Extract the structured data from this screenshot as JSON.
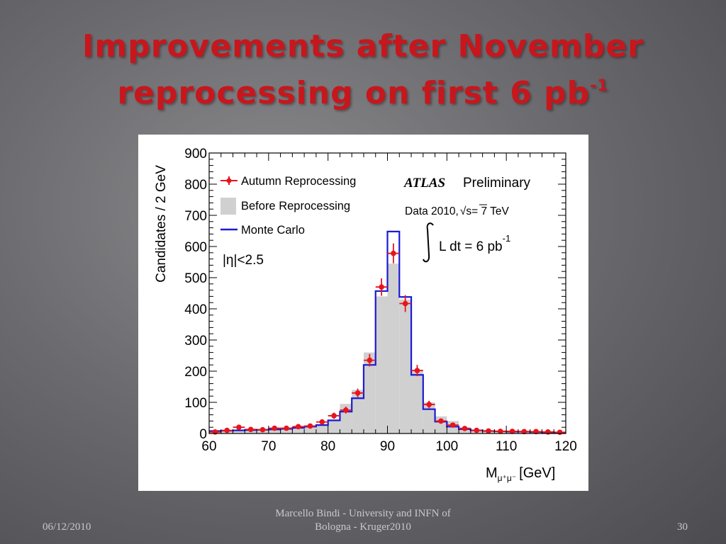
{
  "slide": {
    "title_line1": "Improvements after November",
    "title_line2": "reprocessing on first 6 pb",
    "title_sup": "-1",
    "footer_date": "06/12/2010",
    "footer_author": "Marcello Bindi - University and INFN of Bologna - Kruger2010",
    "page_number": "30"
  },
  "chart_data": {
    "type": "bar",
    "ylabel": "Candidates / 2 GeV",
    "xlabel_main": "M",
    "xlabel_sub": "μ⁺μ⁻",
    "xlabel_unit": "[GeV]",
    "xlim": [
      60,
      120
    ],
    "ylim": [
      0,
      900
    ],
    "x_ticks": [
      "60",
      "70",
      "80",
      "90",
      "100",
      "110",
      "120"
    ],
    "y_ticks": [
      "0",
      "100",
      "200",
      "300",
      "400",
      "500",
      "600",
      "700",
      "800",
      "900"
    ],
    "bin_edges": [
      60,
      62,
      64,
      66,
      68,
      70,
      72,
      74,
      76,
      78,
      80,
      82,
      84,
      86,
      88,
      90,
      92,
      94,
      96,
      98,
      100,
      102,
      104,
      106,
      108,
      110,
      112,
      114,
      116,
      118,
      120
    ],
    "legend": {
      "autumn": "Autumn Reprocessing",
      "before": "Before Reprocessing",
      "mc": "Monte Carlo"
    },
    "eta_label": "|η|<2.5",
    "atlas_label": "ATLAS",
    "preliminary": "Preliminary",
    "data_label": "Data 2010,",
    "sqrt_s": "s= 7 TeV",
    "lumi_label": "L dt = 6 pb",
    "lumi_sup": "-1",
    "colors": {
      "autumn": "#e8141c",
      "before": "#d0d0d0",
      "mc": "#1a1ad6"
    },
    "series": [
      {
        "name": "Before Reprocessing",
        "values": [
          8,
          10,
          12,
          13,
          14,
          15,
          17,
          20,
          25,
          30,
          45,
          95,
          140,
          260,
          440,
          545,
          430,
          205,
          100,
          55,
          40,
          20,
          12,
          8,
          6,
          6,
          5,
          5,
          4,
          3
        ]
      },
      {
        "name": "Monte Carlo",
        "values": [
          8,
          9,
          10,
          11,
          12,
          13,
          15,
          18,
          22,
          27,
          42,
          70,
          113,
          220,
          457,
          648,
          438,
          188,
          78,
          38,
          22,
          14,
          10,
          8,
          7,
          6,
          6,
          5,
          4,
          3
        ]
      },
      {
        "name": "Autumn Reprocessing",
        "values": [
          5,
          10,
          20,
          13,
          12,
          17,
          17,
          22,
          24,
          37,
          57,
          75,
          130,
          235,
          470,
          578,
          417,
          202,
          93,
          40,
          27,
          16,
          10,
          8,
          7,
          7,
          6,
          6,
          5,
          4
        ],
        "errors": [
          4,
          5,
          6,
          5,
          5,
          6,
          6,
          6,
          7,
          8,
          10,
          11,
          14,
          20,
          28,
          32,
          27,
          18,
          12,
          8,
          7,
          6,
          4,
          4,
          4,
          4,
          4,
          4,
          3,
          3
        ]
      }
    ]
  }
}
